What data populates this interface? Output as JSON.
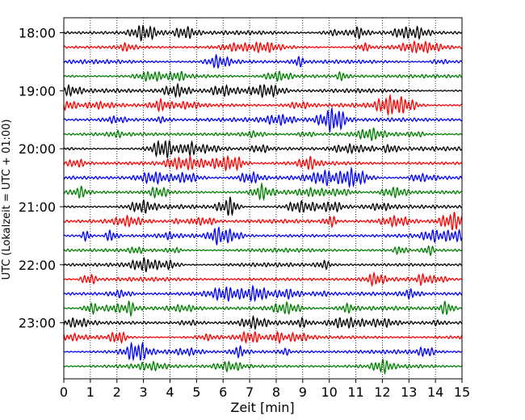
{
  "chart_data": {
    "type": "line",
    "title": "",
    "xlabel": "Zeit  [min]",
    "ylabel": "UTC (Lokalzeit = UTC + 01:00)",
    "xlim": [
      0,
      15
    ],
    "x_ticks": [
      "0",
      "1",
      "2",
      "3",
      "4",
      "5",
      "6",
      "7",
      "8",
      "9",
      "10",
      "11",
      "12",
      "13",
      "14",
      "15"
    ],
    "y_ticks": [
      "18:00",
      "19:00",
      "20:00",
      "21:00",
      "22:00",
      "23:00"
    ],
    "rows_per_hour": 4,
    "start_time": "18:00",
    "end_time": "23:45",
    "grid": "vertical dotted at each minute",
    "colors": [
      "#000000",
      "#ff0000",
      "#0000ff",
      "#008000"
    ],
    "trace_type": "seismogram traces, one per 15-minute window"
  }
}
